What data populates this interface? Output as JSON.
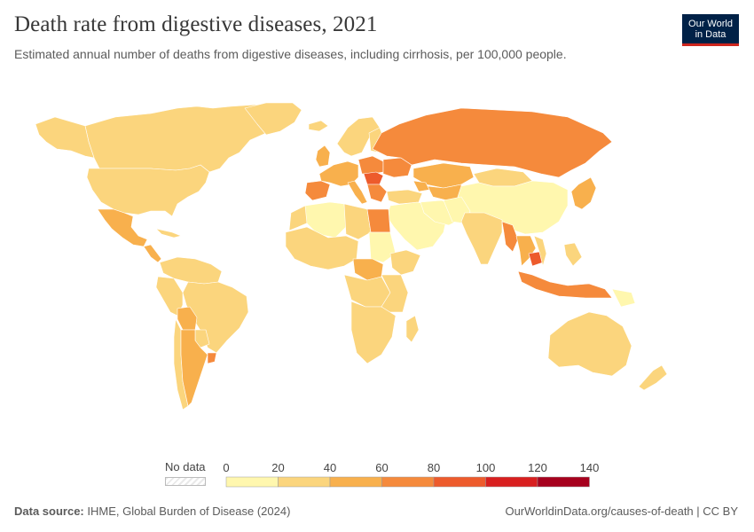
{
  "header": {
    "title": "Death rate from digestive diseases, 2021",
    "subtitle": "Estimated annual number of deaths from digestive diseases, including cirrhosis, per 100,000 people."
  },
  "logo": {
    "line1": "Our World",
    "line2": "in Data"
  },
  "legend": {
    "no_data_label": "No data",
    "bins": [
      {
        "from": 0,
        "to": 20,
        "color": "#fff7ae"
      },
      {
        "from": 20,
        "to": 40,
        "color": "#fbd57d"
      },
      {
        "from": 40,
        "to": 60,
        "color": "#f8b04d"
      },
      {
        "from": 60,
        "to": 80,
        "color": "#f58a3c"
      },
      {
        "from": 80,
        "to": 100,
        "color": "#ed5b2c"
      },
      {
        "from": 100,
        "to": 120,
        "color": "#d81f1f"
      },
      {
        "from": 120,
        "to": 140,
        "color": "#a6001d"
      }
    ],
    "tick_labels": [
      "0",
      "20",
      "40",
      "60",
      "80",
      "100",
      "120",
      "140"
    ]
  },
  "footer": {
    "source_label": "Data source:",
    "source_text": "IHME, Global Burden of Disease (2024)",
    "url": "OurWorldinData.org/causes-of-death | CC BY"
  },
  "colors": {
    "ocean": "#ffffff",
    "border": "#ffffff",
    "logo_bg": "#002147",
    "logo_accent": "#ce261e"
  }
}
